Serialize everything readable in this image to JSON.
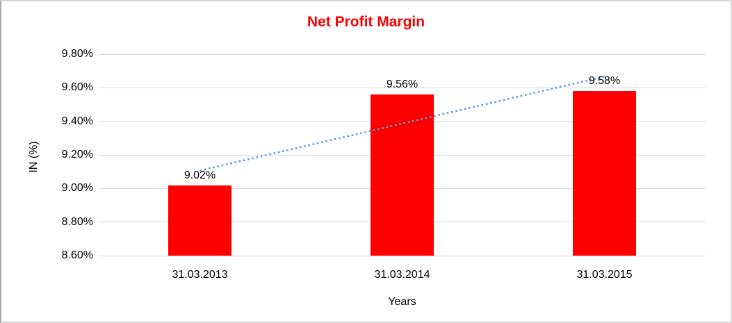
{
  "chart_data": {
    "type": "bar",
    "title": "Net Profit Margin",
    "categories": [
      "31.03.2013",
      "31.03.2014",
      "31.03.2015"
    ],
    "values": [
      9.02,
      9.56,
      9.58
    ],
    "data_labels": [
      "9.02%",
      "9.56%",
      "9.58%"
    ],
    "xlabel": "Years",
    "ylabel": "IN (%)",
    "ylim": [
      8.6,
      9.8
    ],
    "ytick_step": 0.2,
    "ytick_labels": [
      "8.60%",
      "8.80%",
      "9.00%",
      "9.20%",
      "9.40%",
      "9.60%",
      "9.80%"
    ],
    "grid": true,
    "legend": "none",
    "trendline": {
      "type": "linear",
      "style": "dotted"
    },
    "colors": {
      "bar": "#FF0000",
      "title": "#FF0000",
      "gridline": "#D9D9D9",
      "axis_text": "#000000",
      "trendline": "#5B9BD5",
      "background": "#FFFFFF",
      "border": "#D6D6D6"
    }
  }
}
